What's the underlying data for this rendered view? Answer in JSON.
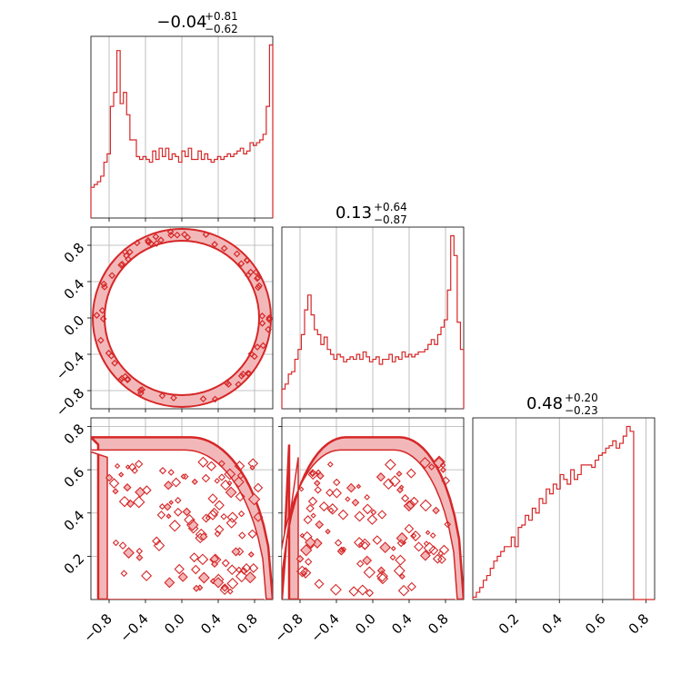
{
  "chart_data": {
    "type": "corner",
    "color": "#d62728",
    "fill_color": "#f2b8b9",
    "grid": true,
    "titles": [
      {
        "median": "−0.04",
        "plus": "+0.81",
        "minus": "−0.62"
      },
      {
        "median": "0.13",
        "plus": "+0.64",
        "minus": "−0.87"
      },
      {
        "median": "0.48",
        "plus": "+0.20",
        "minus": "−0.23"
      }
    ],
    "params": [
      {
        "range": [
          -1.0,
          1.0
        ],
        "ticks": [
          -0.8,
          -0.4,
          0.0,
          0.4,
          0.8
        ],
        "tick_labels": [
          "−0.8",
          "−0.4",
          "0.0",
          "0.4",
          "0.8"
        ]
      },
      {
        "range": [
          -1.0,
          1.0
        ],
        "ticks": [
          -0.8,
          -0.4,
          0.0,
          0.4,
          0.8
        ],
        "tick_labels": [
          "−0.8",
          "−0.4",
          "0.0",
          "0.4",
          "0.8"
        ]
      },
      {
        "range": [
          0.0,
          0.84
        ],
        "ticks": [
          0.2,
          0.4,
          0.6,
          0.8
        ],
        "tick_labels": [
          "0.2",
          "0.4",
          "0.6",
          "0.8"
        ]
      }
    ],
    "histograms": [
      {
        "x_start": -1.0,
        "x_end": 1.0,
        "values": [
          11,
          12,
          13,
          15,
          20,
          23,
          40,
          45,
          60,
          41,
          45,
          37,
          28,
          28,
          22,
          21,
          22,
          21,
          20,
          24,
          21,
          25,
          22,
          25,
          21,
          23,
          22,
          20,
          24,
          22,
          25,
          21,
          21,
          24,
          21,
          23,
          21,
          20,
          21,
          22,
          21,
          22,
          23,
          22,
          23,
          24,
          25,
          23,
          24,
          27,
          26,
          27,
          28,
          30,
          40,
          62
        ]
      },
      {
        "x_start": -1.0,
        "x_end": 1.0,
        "values": [
          8,
          10,
          14,
          15,
          20,
          24,
          30,
          40,
          46,
          38,
          32,
          30,
          26,
          29,
          24,
          22,
          20,
          22,
          21,
          19,
          20,
          21,
          20,
          22,
          20,
          23,
          21,
          19,
          20,
          21,
          18,
          20,
          20,
          22,
          19,
          21,
          20,
          23,
          21,
          22,
          21,
          22,
          23,
          23,
          24,
          26,
          28,
          26,
          30,
          33,
          36,
          48,
          70,
          62,
          35,
          24
        ]
      },
      {
        "x_start": 0.0,
        "x_end": 0.84,
        "values": [
          1,
          3,
          5,
          8,
          10,
          13,
          16,
          18,
          20,
          22,
          22,
          26,
          22,
          30,
          31,
          35,
          33,
          38,
          36,
          42,
          40,
          46,
          44,
          48,
          46,
          52,
          50,
          48,
          54,
          50,
          52,
          56,
          56,
          56,
          55,
          58,
          60,
          61,
          63,
          64,
          66,
          63,
          65,
          68,
          72,
          70,
          0,
          0,
          0,
          0,
          0,
          0
        ]
      }
    ]
  }
}
